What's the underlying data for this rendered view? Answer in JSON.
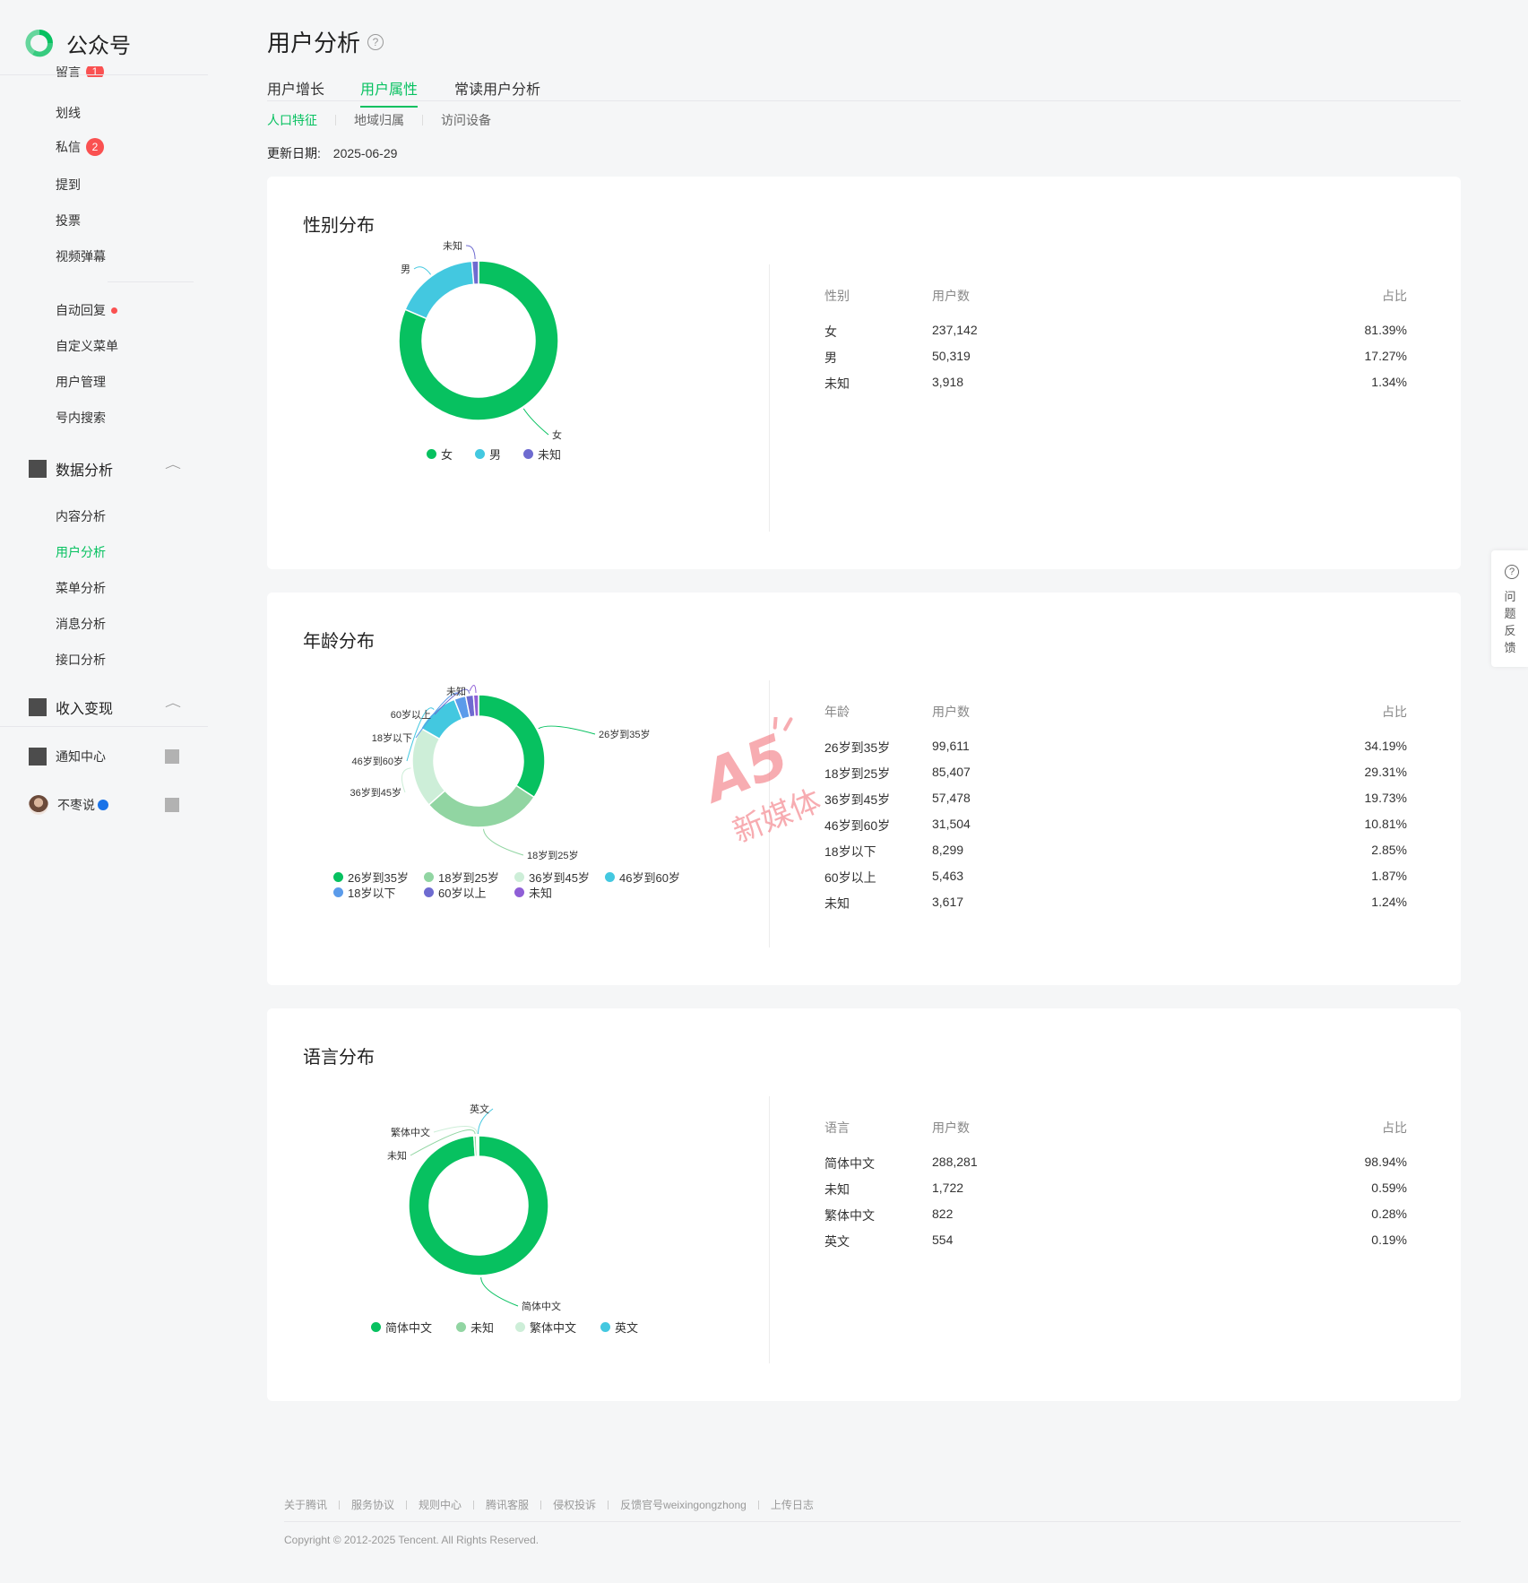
{
  "app": {
    "logo_text": "公众号"
  },
  "sidebar": {
    "cut_item": {
      "label": "留言",
      "badge": "1"
    },
    "items": [
      {
        "label": "划线"
      },
      {
        "label": "私信",
        "badge": "2"
      },
      {
        "label": "提到"
      },
      {
        "label": "投票"
      },
      {
        "label": "视频弹幕"
      },
      {
        "label": "自动回复",
        "dot": true
      },
      {
        "label": "自定义菜单"
      },
      {
        "label": "用户管理"
      },
      {
        "label": "号内搜索"
      }
    ],
    "data_analysis": {
      "title": "数据分析",
      "items": [
        {
          "label": "内容分析"
        },
        {
          "label": "用户分析",
          "active": true
        },
        {
          "label": "菜单分析"
        },
        {
          "label": "消息分析"
        },
        {
          "label": "接口分析"
        }
      ]
    },
    "monetization": {
      "title": "收入变现"
    },
    "notification": {
      "label": "通知中心"
    },
    "account": {
      "name": "不枣说"
    }
  },
  "page": {
    "title": "用户分析",
    "tabs": [
      "用户增长",
      "用户属性",
      "常读用户分析"
    ],
    "active_tab": "用户属性",
    "subtabs": [
      "人口特征",
      "地域归属",
      "访问设备"
    ],
    "active_subtab": "人口特征",
    "update_label": "更新日期:",
    "update_date": "2025-06-29"
  },
  "colors": {
    "brand": "#07c160",
    "c1": "#07c160",
    "c2": "#91d5a2",
    "c3": "#cdeed8",
    "c4": "#43c8e0",
    "c5": "#5b9bea",
    "c6": "#6e6bd0",
    "c7": "#8f5fd6"
  },
  "chart_data": [
    {
      "type": "pie",
      "title": "性别分布",
      "table_headers": [
        "性别",
        "用户数",
        "占比"
      ],
      "categories": [
        "女",
        "男",
        "未知"
      ],
      "values": [
        237142,
        50319,
        3918
      ],
      "percents": [
        "81.39%",
        "17.27%",
        "1.34%"
      ],
      "values_text": [
        "237,142",
        "50,319",
        "3,918"
      ],
      "colors": [
        "#07c160",
        "#43c8e0",
        "#6e6bd0"
      ],
      "legend": "bottom"
    },
    {
      "type": "pie",
      "title": "年龄分布",
      "table_headers": [
        "年龄",
        "用户数",
        "占比"
      ],
      "categories": [
        "26岁到35岁",
        "18岁到25岁",
        "36岁到45岁",
        "46岁到60岁",
        "18岁以下",
        "60岁以上",
        "未知"
      ],
      "values": [
        99611,
        85407,
        57478,
        31504,
        8299,
        5463,
        3617
      ],
      "percents": [
        "34.19%",
        "29.31%",
        "19.73%",
        "10.81%",
        "2.85%",
        "1.87%",
        "1.24%"
      ],
      "values_text": [
        "99,611",
        "85,407",
        "57,478",
        "31,504",
        "8,299",
        "5,463",
        "3,617"
      ],
      "colors": [
        "#07c160",
        "#91d5a2",
        "#cdeed8",
        "#43c8e0",
        "#5b9bea",
        "#6e6bd0",
        "#8f5fd6"
      ],
      "legend": "bottom"
    },
    {
      "type": "pie",
      "title": "语言分布",
      "table_headers": [
        "语言",
        "用户数",
        "占比"
      ],
      "categories": [
        "简体中文",
        "未知",
        "繁体中文",
        "英文"
      ],
      "values": [
        288281,
        1722,
        822,
        554
      ],
      "percents": [
        "98.94%",
        "0.59%",
        "0.28%",
        "0.19%"
      ],
      "values_text": [
        "288,281",
        "1,722",
        "822",
        "554"
      ],
      "colors": [
        "#07c160",
        "#91d5a2",
        "#cdeed8",
        "#43c8e0"
      ],
      "legend": "bottom"
    }
  ],
  "watermark": {
    "logo": "A5",
    "text": "新媒体"
  },
  "feedback": {
    "label": "问题反馈"
  },
  "footer": {
    "links": [
      "关于腾讯",
      "服务协议",
      "规则中心",
      "腾讯客服",
      "侵权投诉",
      "反馈官号weixingongzhong",
      "上传日志"
    ],
    "copyright": "Copyright © 2012-2025 Tencent. All Rights Reserved."
  }
}
